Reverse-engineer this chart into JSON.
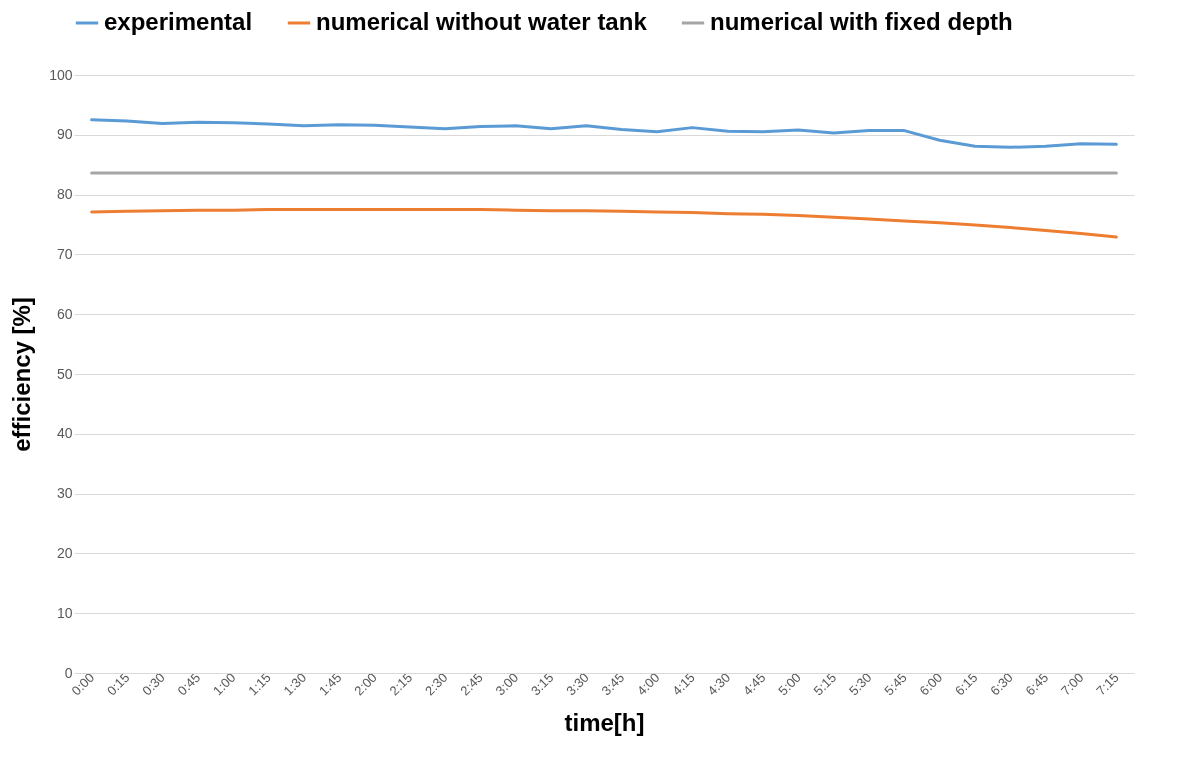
{
  "chart_data": {
    "type": "line",
    "xlabel": "time[h]",
    "ylabel": "efficiency [%]",
    "categories": [
      "0:00",
      "0:15",
      "0:30",
      "0:45",
      "1:00",
      "1:15",
      "1:30",
      "1:45",
      "2:00",
      "2:15",
      "2:30",
      "2:45",
      "3:00",
      "3:15",
      "3:30",
      "3:45",
      "4:00",
      "4:15",
      "4:30",
      "4:45",
      "5:00",
      "5:15",
      "5:30",
      "5:45",
      "6:00",
      "6:15",
      "6:30",
      "6:45",
      "7:00",
      "7:15"
    ],
    "series": [
      {
        "name": "experimental",
        "color": "#5b9bd5",
        "values": [
          92.5,
          92.3,
          91.9,
          92.1,
          92.0,
          91.8,
          91.5,
          91.7,
          91.6,
          91.3,
          91.0,
          91.4,
          91.5,
          91.0,
          91.5,
          90.9,
          90.5,
          91.2,
          90.6,
          90.5,
          90.8,
          90.3,
          90.7,
          90.7,
          89.1,
          88.1,
          87.9,
          88.1,
          88.5,
          88.4
        ]
      },
      {
        "name": "numerical without water tank",
        "color": "#ed7d31",
        "values": [
          77.1,
          77.2,
          77.3,
          77.4,
          77.4,
          77.5,
          77.5,
          77.5,
          77.5,
          77.5,
          77.5,
          77.5,
          77.4,
          77.3,
          77.3,
          77.2,
          77.1,
          77.0,
          76.8,
          76.7,
          76.5,
          76.2,
          75.9,
          75.6,
          75.3,
          74.9,
          74.5,
          74.0,
          73.5,
          72.9
        ]
      },
      {
        "name": "numerical with fixed depth",
        "color": "#a5a5a5",
        "values": [
          83.6,
          83.6,
          83.6,
          83.6,
          83.6,
          83.6,
          83.6,
          83.6,
          83.6,
          83.6,
          83.6,
          83.6,
          83.6,
          83.6,
          83.6,
          83.6,
          83.6,
          83.6,
          83.6,
          83.6,
          83.6,
          83.6,
          83.6,
          83.6,
          83.6,
          83.6,
          83.6,
          83.6,
          83.6,
          83.6
        ]
      }
    ],
    "ylim": [
      0,
      100
    ],
    "yticks": [
      0,
      10,
      20,
      30,
      40,
      50,
      60,
      70,
      80,
      90,
      100
    ],
    "grid": "y",
    "legend": "top",
    "marker": "none",
    "line_style": "solid"
  }
}
